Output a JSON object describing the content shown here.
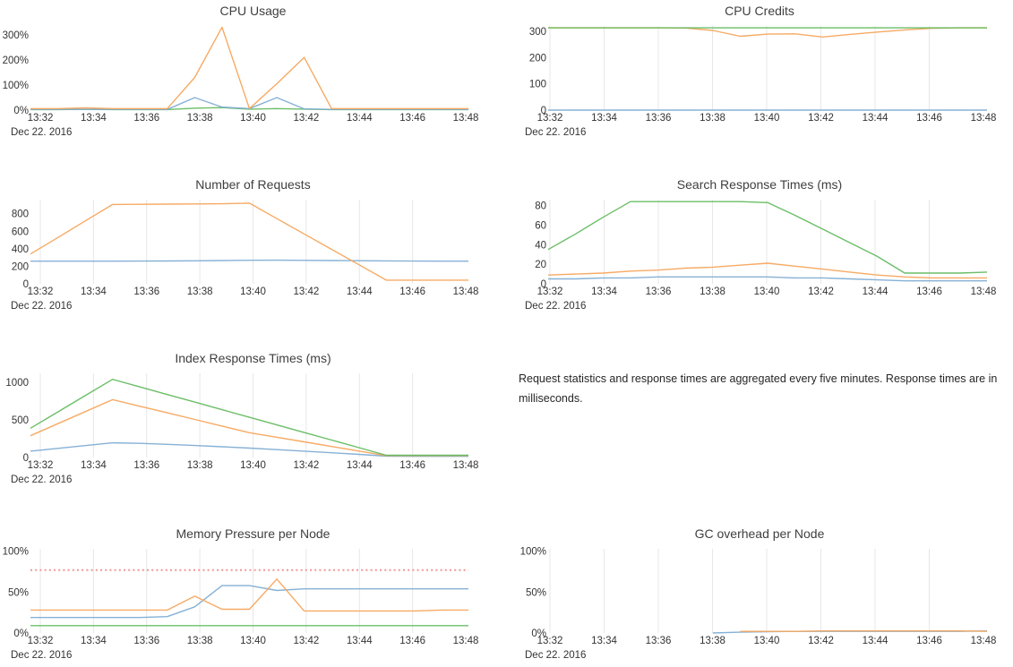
{
  "note": "Request statistics and response times are aggregated every five minutes. Response times are in milliseconds.",
  "colors": {
    "blue": "#7fadd3",
    "orange": "#f5a55c",
    "green": "#63ba5f",
    "red": "#ef8f8f",
    "grid": "#e7e7e7",
    "text": "#333333",
    "title": "#3f3f3f"
  },
  "time_axis": {
    "points": [
      "13:32",
      "13:33",
      "13:34",
      "13:35",
      "13:36",
      "13:37",
      "13:38",
      "13:39",
      "13:40",
      "13:41",
      "13:42",
      "13:43",
      "13:44",
      "13:45",
      "13:46",
      "13:47",
      "13:48"
    ],
    "tick_labels": [
      "13:32",
      "13:34",
      "13:36",
      "13:38",
      "13:40",
      "13:42",
      "13:44",
      "13:46",
      "13:48"
    ],
    "date_label": "Dec 22. 2016"
  },
  "chart_data": [
    {
      "type": "line",
      "title": "CPU Usage",
      "ylim": [
        0,
        335
      ],
      "grid": false,
      "yticks": [
        {
          "v": 0,
          "label": "0%"
        },
        {
          "v": 100,
          "label": "100%"
        },
        {
          "v": 200,
          "label": "200%"
        },
        {
          "v": 300,
          "label": "300%"
        }
      ],
      "series": [
        {
          "name": "green",
          "color": "green",
          "values": [
            2,
            2,
            3,
            2,
            2,
            2,
            8,
            10,
            4,
            6,
            4,
            2,
            2,
            2,
            2,
            2,
            2
          ]
        },
        {
          "name": "blue",
          "color": "blue",
          "values": [
            3,
            3,
            3,
            3,
            3,
            3,
            50,
            12,
            6,
            50,
            5,
            3,
            3,
            3,
            3,
            3,
            3
          ]
        },
        {
          "name": "orange",
          "color": "orange",
          "values": [
            6,
            6,
            9,
            6,
            6,
            6,
            130,
            330,
            6,
            105,
            210,
            6,
            6,
            6,
            6,
            6,
            6
          ]
        }
      ]
    },
    {
      "type": "line",
      "title": "CPU Credits",
      "ylim": [
        0,
        320
      ],
      "grid": true,
      "yticks": [
        {
          "v": 0,
          "label": "0"
        },
        {
          "v": 100,
          "label": "100"
        },
        {
          "v": 200,
          "label": "200"
        },
        {
          "v": 300,
          "label": "300"
        }
      ],
      "series": [
        {
          "name": "blue",
          "color": "blue",
          "values": [
            0,
            0,
            0,
            0,
            0,
            0,
            0,
            0,
            0,
            0,
            0,
            0,
            0,
            0,
            0,
            0,
            0
          ]
        },
        {
          "name": "orange",
          "color": "orange",
          "values": [
            313,
            313,
            313,
            313,
            313,
            312,
            303,
            281,
            289,
            290,
            278,
            288,
            297,
            305,
            311,
            313,
            313
          ]
        },
        {
          "name": "green",
          "color": "green",
          "values": [
            313,
            313,
            313,
            313,
            313,
            313,
            313,
            313,
            313,
            313,
            313,
            313,
            313,
            313,
            313,
            313,
            313
          ]
        }
      ]
    },
    {
      "type": "line",
      "title": "Number of Requests",
      "ylim": [
        0,
        960
      ],
      "grid": true,
      "yticks": [
        {
          "v": 0,
          "label": "0"
        },
        {
          "v": 200,
          "label": "200"
        },
        {
          "v": 400,
          "label": "400"
        },
        {
          "v": 600,
          "label": "600"
        },
        {
          "v": 800,
          "label": "800"
        }
      ],
      "series": [
        {
          "name": "blue",
          "color": "blue",
          "values": [
            258,
            258,
            258,
            258,
            259,
            260,
            262,
            266,
            269,
            270,
            268,
            266,
            263,
            261,
            259,
            258,
            258
          ]
        },
        {
          "name": "orange",
          "color": "orange",
          "values": [
            340,
            528,
            717,
            905,
            907,
            909,
            911,
            913,
            920,
            744,
            569,
            393,
            218,
            42,
            42,
            42,
            42
          ]
        }
      ]
    },
    {
      "type": "line",
      "title": "Search Response Times (ms)",
      "ylim": [
        0,
        86
      ],
      "grid": true,
      "yticks": [
        {
          "v": 0,
          "label": "0"
        },
        {
          "v": 20,
          "label": "20"
        },
        {
          "v": 40,
          "label": "40"
        },
        {
          "v": 60,
          "label": "60"
        },
        {
          "v": 80,
          "label": "80"
        }
      ],
      "series": [
        {
          "name": "blue",
          "color": "blue",
          "values": [
            5,
            5,
            6,
            6,
            7,
            7,
            7,
            7,
            7,
            6,
            6,
            5,
            4,
            3,
            3,
            3,
            3
          ]
        },
        {
          "name": "orange",
          "color": "orange",
          "values": [
            9,
            10,
            11,
            13,
            14,
            16,
            17,
            19,
            21,
            18,
            15,
            12,
            9,
            7,
            6,
            6,
            6
          ]
        },
        {
          "name": "green",
          "color": "green",
          "values": [
            35,
            51,
            68,
            84,
            84,
            84,
            84,
            84,
            83,
            70,
            56,
            42,
            28,
            11,
            11,
            11,
            12
          ]
        }
      ]
    },
    {
      "type": "line",
      "title": "Index Response Times (ms)",
      "ylim": [
        0,
        1120
      ],
      "grid": true,
      "yticks": [
        {
          "v": 0,
          "label": "0"
        },
        {
          "v": 500,
          "label": "500"
        },
        {
          "v": 1000,
          "label": "1000"
        }
      ],
      "series": [
        {
          "name": "blue",
          "color": "blue",
          "values": [
            85,
            122,
            158,
            195,
            188,
            175,
            160,
            143,
            125,
            105,
            85,
            63,
            42,
            18,
            15,
            15,
            15
          ]
        },
        {
          "name": "orange",
          "color": "orange",
          "values": [
            290,
            450,
            610,
            770,
            682,
            594,
            506,
            418,
            330,
            269,
            208,
            147,
            86,
            25,
            25,
            25,
            25
          ]
        },
        {
          "name": "green",
          "color": "green",
          "values": [
            390,
            607,
            823,
            1040,
            939,
            838,
            737,
            636,
            535,
            434,
            333,
            232,
            131,
            30,
            30,
            30,
            30
          ]
        }
      ]
    },
    {
      "type": "line",
      "title": "Memory Pressure per Node",
      "ylim": [
        0,
        103
      ],
      "grid": true,
      "yticks": [
        {
          "v": 0,
          "label": "0%"
        },
        {
          "v": 50,
          "label": "50%"
        },
        {
          "v": 100,
          "label": "100%"
        }
      ],
      "series": [
        {
          "name": "green",
          "color": "green",
          "values": [
            9,
            9,
            9,
            9,
            9,
            9,
            9,
            9,
            9,
            9,
            9,
            9,
            9,
            9,
            9,
            9,
            9
          ]
        },
        {
          "name": "blue",
          "color": "blue",
          "values": [
            19,
            19,
            19,
            19,
            19,
            20,
            32,
            58,
            58,
            52,
            54,
            54,
            54,
            54,
            54,
            54,
            54
          ]
        },
        {
          "name": "orange",
          "color": "orange",
          "values": [
            28,
            28,
            28,
            28,
            28,
            28,
            45,
            29,
            29,
            66,
            27,
            27,
            27,
            27,
            27,
            28,
            28
          ]
        },
        {
          "name": "red-dashed-threshold",
          "color": "red",
          "dash": true,
          "values": [
            77,
            77,
            77,
            77,
            77,
            77,
            77,
            77,
            77,
            77,
            77,
            77,
            77,
            77,
            77,
            77,
            77
          ]
        }
      ]
    },
    {
      "type": "line",
      "title": "GC overhead per Node",
      "ylim": [
        0,
        103
      ],
      "grid": true,
      "yticks": [
        {
          "v": 0,
          "label": "0%"
        },
        {
          "v": 50,
          "label": "50%"
        },
        {
          "v": 100,
          "label": "100%"
        }
      ],
      "series": [
        {
          "name": "blue",
          "color": "blue",
          "values": [
            null,
            null,
            null,
            null,
            null,
            null,
            0,
            1,
            1.5,
            2,
            2,
            2,
            2,
            2,
            2,
            2,
            2.5
          ]
        },
        {
          "name": "orange",
          "color": "orange",
          "values": [
            null,
            null,
            null,
            null,
            null,
            null,
            null,
            2,
            2,
            2,
            2.5,
            2.5,
            2.5,
            2.5,
            2.5,
            2.5,
            2
          ]
        }
      ]
    }
  ]
}
